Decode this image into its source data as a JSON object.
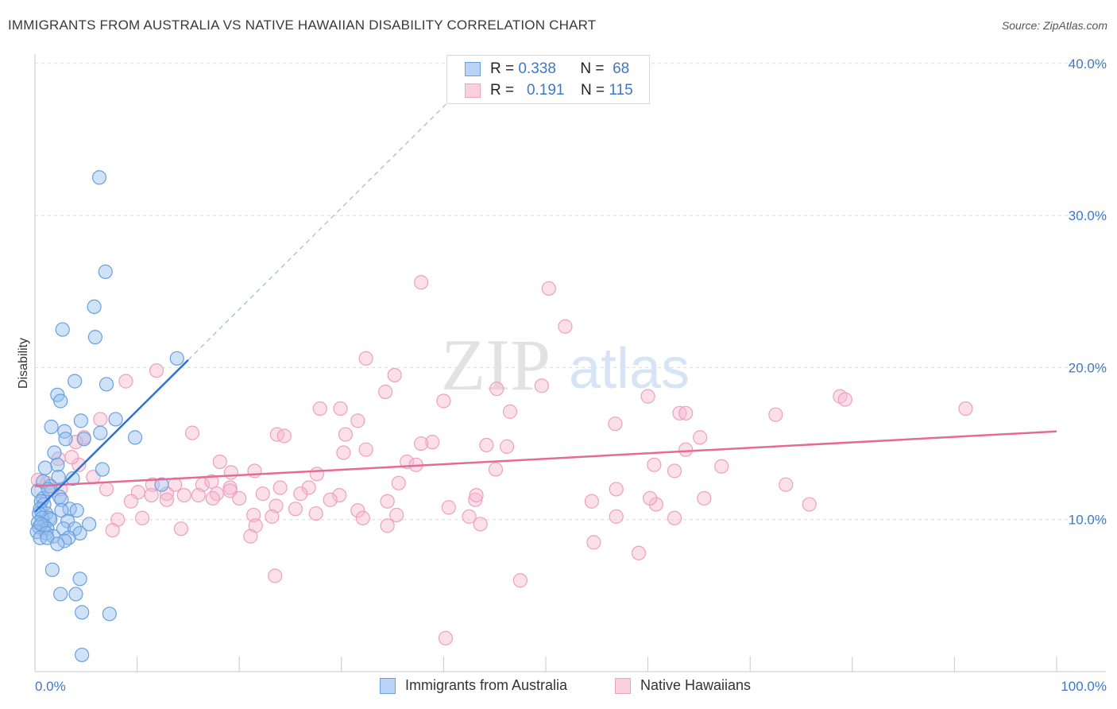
{
  "title": "IMMIGRANTS FROM AUSTRALIA VS NATIVE HAWAIIAN DISABILITY CORRELATION CHART",
  "source": "Source: ZipAtlas.com",
  "watermark": {
    "zip": "ZIP",
    "atlas": "atlas"
  },
  "legend": {
    "r_label": "R =",
    "n_label": "N =",
    "rows": [
      {
        "r": "0.338",
        "n": "68"
      },
      {
        "r": "0.191",
        "n": "115"
      }
    ]
  },
  "chart_data": {
    "type": "scatter",
    "title": "IMMIGRANTS FROM AUSTRALIA VS NATIVE HAWAIIAN DISABILITY CORRELATION CHART",
    "xlabel": "",
    "ylabel": "Disability",
    "xlim": [
      0,
      100
    ],
    "ylim": [
      0,
      42
    ],
    "x_tick_labels": [
      {
        "value": 0,
        "label": "0.0%"
      },
      {
        "value": 100,
        "label": "100.0%"
      }
    ],
    "y_ticks": [
      {
        "value": 10,
        "label": "10.0%"
      },
      {
        "value": 20,
        "label": "20.0%"
      },
      {
        "value": 30,
        "label": "30.0%"
      },
      {
        "value": 40,
        "label": "40.0%"
      }
    ],
    "colors": {
      "blue": "#7aaee8",
      "blue_line": "#2a72d4",
      "pink": "#f3a6c0",
      "pink_line": "#e56b96"
    },
    "series": [
      {
        "name": "Immigrants from Australia",
        "color": "#7aaee8",
        "trend": {
          "x0": 0,
          "y0": 10.5,
          "x1": 15,
          "y1": 20.5,
          "dashed_to_x": 42,
          "dashed_to_y": 38.5
        },
        "points": [
          [
            6.3,
            32.5
          ],
          [
            6.9,
            26.3
          ],
          [
            5.8,
            24
          ],
          [
            2.7,
            22.5
          ],
          [
            5.9,
            22
          ],
          [
            13.9,
            20.6
          ],
          [
            7,
            18.9
          ],
          [
            3.9,
            19.1
          ],
          [
            2.2,
            18.2
          ],
          [
            2.5,
            17.8
          ],
          [
            4.5,
            16.5
          ],
          [
            1.6,
            16.1
          ],
          [
            7.9,
            16.6
          ],
          [
            2.9,
            15.8
          ],
          [
            6.4,
            15.7
          ],
          [
            3.0,
            15.3
          ],
          [
            4.8,
            15.3
          ],
          [
            9.8,
            15.4
          ],
          [
            1.9,
            14.4
          ],
          [
            2.2,
            13.6
          ],
          [
            1.0,
            13.4
          ],
          [
            6.6,
            13.3
          ],
          [
            2.3,
            12.8
          ],
          [
            1.5,
            12.2
          ],
          [
            12.4,
            12.3
          ],
          [
            0.3,
            11.9
          ],
          [
            0.8,
            11.4
          ],
          [
            2.4,
            11.5
          ],
          [
            0.6,
            11.2
          ],
          [
            0.9,
            11.0
          ],
          [
            2.6,
            11.3
          ],
          [
            0.5,
            10.7
          ],
          [
            1.1,
            10.4
          ],
          [
            3.4,
            10.7
          ],
          [
            0.4,
            10.4
          ],
          [
            1.4,
            10.1
          ],
          [
            2.6,
            10.6
          ],
          [
            0.7,
            10.1
          ],
          [
            1.5,
            10.0
          ],
          [
            0.3,
            9.8
          ],
          [
            3.2,
            9.9
          ],
          [
            0.9,
            9.6
          ],
          [
            2.8,
            9.4
          ],
          [
            4.1,
            10.6
          ],
          [
            0.4,
            9.5
          ],
          [
            1.2,
            9.4
          ],
          [
            0.2,
            9.2
          ],
          [
            3.9,
            9.4
          ],
          [
            5.3,
            9.7
          ],
          [
            0.6,
            9.7
          ],
          [
            1.1,
            9.1
          ],
          [
            1.8,
            8.9
          ],
          [
            4.4,
            9.1
          ],
          [
            0.5,
            8.8
          ],
          [
            3.3,
            8.8
          ],
          [
            1.2,
            8.8
          ],
          [
            2.9,
            8.6
          ],
          [
            2.2,
            8.4
          ],
          [
            1.7,
            6.7
          ],
          [
            4.4,
            6.1
          ],
          [
            2.5,
            5.1
          ],
          [
            4.0,
            5.1
          ],
          [
            4.6,
            3.9
          ],
          [
            7.3,
            3.8
          ],
          [
            4.6,
            1.1
          ],
          [
            0.8,
            12.5
          ],
          [
            3.7,
            12.7
          ],
          [
            1.3,
            12.0
          ]
        ]
      },
      {
        "name": "Native Hawaiians",
        "color": "#f3a6c0",
        "trend": {
          "x0": 0,
          "y0": 12.2,
          "x1": 100,
          "y1": 15.8
        },
        "points": [
          [
            37.8,
            25.6
          ],
          [
            50.3,
            25.2
          ],
          [
            51.9,
            22.7
          ],
          [
            32.4,
            20.6
          ],
          [
            11.9,
            19.8
          ],
          [
            35.2,
            19.5
          ],
          [
            8.9,
            19.1
          ],
          [
            34.3,
            18.4
          ],
          [
            45.2,
            18.6
          ],
          [
            49.6,
            18.8
          ],
          [
            60,
            18.1
          ],
          [
            78.8,
            18.1
          ],
          [
            79.3,
            17.9
          ],
          [
            40,
            17.8
          ],
          [
            91.1,
            17.3
          ],
          [
            27.9,
            17.3
          ],
          [
            29.9,
            17.3
          ],
          [
            46.5,
            17.1
          ],
          [
            63.1,
            17.0
          ],
          [
            72.5,
            16.9
          ],
          [
            63.7,
            17.0
          ],
          [
            31.6,
            16.5
          ],
          [
            6.4,
            16.6
          ],
          [
            56.8,
            16.3
          ],
          [
            4.8,
            15.4
          ],
          [
            15.4,
            15.7
          ],
          [
            23.7,
            15.6
          ],
          [
            24.4,
            15.5
          ],
          [
            30.4,
            15.6
          ],
          [
            65.1,
            15.4
          ],
          [
            38.9,
            15.1
          ],
          [
            37.8,
            15.0
          ],
          [
            44.2,
            14.9
          ],
          [
            46.2,
            14.8
          ],
          [
            30.2,
            14.4
          ],
          [
            32.4,
            14.6
          ],
          [
            63.7,
            14.6
          ],
          [
            2.3,
            14.0
          ],
          [
            4.3,
            13.6
          ],
          [
            18.1,
            13.8
          ],
          [
            36.4,
            13.8
          ],
          [
            37.3,
            13.6
          ],
          [
            60.6,
            13.6
          ],
          [
            67.2,
            13.5
          ],
          [
            21.5,
            13.2
          ],
          [
            19.2,
            13.1
          ],
          [
            27.6,
            13.0
          ],
          [
            45.1,
            13.3
          ],
          [
            62.6,
            13.2
          ],
          [
            0.3,
            12.6
          ],
          [
            1.2,
            12.4
          ],
          [
            2.5,
            12.0
          ],
          [
            5.7,
            12.8
          ],
          [
            11.5,
            12.3
          ],
          [
            13.7,
            12.3
          ],
          [
            16.4,
            12.3
          ],
          [
            17.3,
            12.5
          ],
          [
            19.1,
            12.1
          ],
          [
            24.0,
            12.1
          ],
          [
            26.8,
            12.1
          ],
          [
            35.6,
            12.4
          ],
          [
            56.9,
            12.0
          ],
          [
            73.5,
            12.3
          ],
          [
            1.6,
            11.9
          ],
          [
            7.0,
            12.0
          ],
          [
            10.1,
            11.8
          ],
          [
            11.4,
            11.6
          ],
          [
            12.9,
            11.7
          ],
          [
            14.6,
            11.6
          ],
          [
            16.0,
            11.6
          ],
          [
            17.8,
            11.7
          ],
          [
            19.1,
            11.9
          ],
          [
            22.3,
            11.7
          ],
          [
            26.0,
            11.7
          ],
          [
            29.8,
            11.6
          ],
          [
            34.5,
            11.2
          ],
          [
            43.1,
            11.3
          ],
          [
            43.2,
            11.6
          ],
          [
            54.5,
            11.2
          ],
          [
            60.8,
            11.0
          ],
          [
            60.2,
            11.4
          ],
          [
            65.5,
            11.4
          ],
          [
            75.8,
            11.0
          ],
          [
            9.4,
            11.2
          ],
          [
            12.9,
            11.3
          ],
          [
            17.4,
            11.4
          ],
          [
            20.0,
            11.4
          ],
          [
            28.9,
            11.3
          ],
          [
            23.6,
            10.9
          ],
          [
            40.5,
            10.8
          ],
          [
            31.6,
            10.6
          ],
          [
            25.5,
            10.7
          ],
          [
            27.5,
            10.4
          ],
          [
            35.4,
            10.3
          ],
          [
            42.5,
            10.2
          ],
          [
            21.4,
            10.3
          ],
          [
            23.2,
            10.2
          ],
          [
            8.1,
            10.0
          ],
          [
            10.5,
            10.1
          ],
          [
            32.1,
            10.1
          ],
          [
            56.9,
            10.2
          ],
          [
            62.6,
            10.1
          ],
          [
            7.6,
            9.3
          ],
          [
            14.3,
            9.4
          ],
          [
            21.6,
            9.6
          ],
          [
            34.5,
            9.6
          ],
          [
            43.6,
            9.7
          ],
          [
            21.1,
            8.9
          ],
          [
            54.7,
            8.5
          ],
          [
            59.1,
            7.8
          ],
          [
            23.5,
            6.3
          ],
          [
            47.5,
            6.0
          ],
          [
            40.2,
            2.2
          ],
          [
            4.0,
            15.1
          ],
          [
            3.6,
            14.1
          ]
        ]
      }
    ]
  },
  "bottom_legend": [
    {
      "label": "Immigrants from Australia"
    },
    {
      "label": "Native Hawaiians"
    }
  ]
}
